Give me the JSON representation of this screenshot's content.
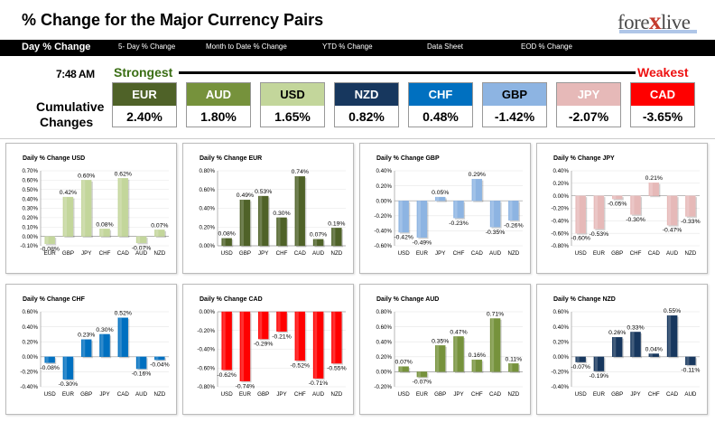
{
  "header": {
    "title": "% Change for the Major Currency Pairs"
  },
  "logo": {
    "text_pre": "fore",
    "text_x": "x",
    "text_post": "live"
  },
  "tabs": [
    {
      "label": "Day % Change",
      "active": true
    },
    {
      "label": "5- Day % Change",
      "active": false
    },
    {
      "label": "Month to Date % Change",
      "active": false
    },
    {
      "label": "YTD % Change",
      "active": false
    },
    {
      "label": "Data Sheet",
      "active": false
    },
    {
      "label": "EOD % Change",
      "active": false
    }
  ],
  "summary": {
    "time": "7:48 AM",
    "strongest_label": "Strongest",
    "weakest_label": "Weakest",
    "cumulative_label_1": "Cumulative",
    "cumulative_label_2": "Changes",
    "currencies": [
      {
        "name": "EUR",
        "value": "2.40%",
        "color": "#4f6228",
        "text_color": "#ffffff"
      },
      {
        "name": "AUD",
        "value": "1.80%",
        "color": "#76923c",
        "text_color": "#ffffff"
      },
      {
        "name": "USD",
        "value": "1.65%",
        "color": "#c3d69b",
        "text_color": "#000000"
      },
      {
        "name": "NZD",
        "value": "0.82%",
        "color": "#17375e",
        "text_color": "#ffffff"
      },
      {
        "name": "CHF",
        "value": "0.48%",
        "color": "#0070c0",
        "text_color": "#ffffff"
      },
      {
        "name": "GBP",
        "value": "-1.42%",
        "color": "#8db4e2",
        "text_color": "#000000"
      },
      {
        "name": "JPY",
        "value": "-2.07%",
        "color": "#e6b9b8",
        "text_color": "#ffffff"
      },
      {
        "name": "CAD",
        "value": "-3.65%",
        "color": "#ff0000",
        "text_color": "#ffffff"
      }
    ]
  },
  "chart_data": [
    {
      "type": "bar",
      "title": "Daily % Change USD",
      "categories": [
        "EUR",
        "GBP",
        "JPY",
        "CHF",
        "CAD",
        "AUD",
        "NZD"
      ],
      "values": [
        -0.08,
        0.42,
        0.6,
        0.08,
        0.62,
        -0.07,
        0.07
      ],
      "labels": [
        "-0.08%",
        "0.42%",
        "0.60%",
        "0.08%",
        "0.62%",
        "-0.07%",
        "0.07%"
      ],
      "ylim": [
        -0.1,
        0.7
      ],
      "yticks": [
        "-0.10%",
        "0.00%",
        "0.10%",
        "0.20%",
        "0.30%",
        "0.40%",
        "0.50%",
        "0.60%",
        "0.70%"
      ],
      "color": "#c3d69b"
    },
    {
      "type": "bar",
      "title": "Daily % Change EUR",
      "categories": [
        "USD",
        "GBP",
        "JPY",
        "CHF",
        "CAD",
        "AUD",
        "NZD"
      ],
      "values": [
        0.08,
        0.49,
        0.53,
        0.3,
        0.74,
        0.07,
        0.19
      ],
      "labels": [
        "0.08%",
        "0.49%",
        "0.53%",
        "0.30%",
        "0.74%",
        "0.07%",
        "0.19%"
      ],
      "ylim": [
        0.0,
        0.8
      ],
      "yticks": [
        "0.00%",
        "0.20%",
        "0.40%",
        "0.60%",
        "0.80%"
      ],
      "color": "#4f6228"
    },
    {
      "type": "bar",
      "title": "Daily % Change GBP",
      "categories": [
        "USD",
        "EUR",
        "JPY",
        "CHF",
        "CAD",
        "AUD",
        "NZD"
      ],
      "values": [
        -0.42,
        -0.49,
        0.05,
        -0.23,
        0.29,
        -0.35,
        -0.26
      ],
      "labels": [
        "-0.42%",
        "-0.49%",
        "0.05%",
        "-0.23%",
        "0.29%",
        "-0.35%",
        "-0.26%"
      ],
      "ylim": [
        -0.6,
        0.4
      ],
      "yticks": [
        "-0.60%",
        "-0.40%",
        "-0.20%",
        "0.00%",
        "0.20%",
        "0.40%"
      ],
      "color": "#8db4e2"
    },
    {
      "type": "bar",
      "title": "Daily % Change JPY",
      "categories": [
        "USD",
        "EUR",
        "GBP",
        "CHF",
        "CAD",
        "AUD",
        "NZD"
      ],
      "values": [
        -0.6,
        -0.53,
        -0.05,
        -0.3,
        0.21,
        -0.47,
        -0.33
      ],
      "labels": [
        "-0.60%",
        "-0.53%",
        "-0.05%",
        "-0.30%",
        "0.21%",
        "-0.47%",
        "-0.33%"
      ],
      "ylim": [
        -0.8,
        0.4
      ],
      "yticks": [
        "-0.80%",
        "-0.60%",
        "-0.40%",
        "-0.20%",
        "0.00%",
        "0.20%",
        "0.40%"
      ],
      "color": "#e6b9b8"
    },
    {
      "type": "bar",
      "title": "Daily % Change CHF",
      "categories": [
        "USD",
        "EUR",
        "GBP",
        "JPY",
        "CAD",
        "AUD",
        "NZD"
      ],
      "values": [
        -0.08,
        -0.3,
        0.23,
        0.3,
        0.52,
        -0.16,
        -0.04
      ],
      "labels": [
        "-0.08%",
        "-0.30%",
        "0.23%",
        "0.30%",
        "0.52%",
        "-0.16%",
        "-0.04%"
      ],
      "ylim": [
        -0.4,
        0.6
      ],
      "yticks": [
        "-0.40%",
        "-0.20%",
        "0.00%",
        "0.20%",
        "0.40%",
        "0.60%"
      ],
      "color": "#0070c0"
    },
    {
      "type": "bar",
      "title": "Daily % Change CAD",
      "categories": [
        "USD",
        "EUR",
        "GBP",
        "JPY",
        "CHF",
        "AUD",
        "NZD"
      ],
      "values": [
        -0.62,
        -0.74,
        -0.29,
        -0.21,
        -0.52,
        -0.71,
        -0.55
      ],
      "labels": [
        "-0.62%",
        "-0.74%",
        "-0.29%",
        "-0.21%",
        "-0.52%",
        "-0.71%",
        "-0.55%"
      ],
      "ylim": [
        -0.8,
        0.0
      ],
      "yticks": [
        "-0.80%",
        "-0.60%",
        "-0.40%",
        "-0.20%",
        "0.00%"
      ],
      "color": "#ff0000"
    },
    {
      "type": "bar",
      "title": "Daily % Change AUD",
      "categories": [
        "USD",
        "EUR",
        "GBP",
        "JPY",
        "CHF",
        "CAD",
        "NZD"
      ],
      "values": [
        0.07,
        -0.07,
        0.35,
        0.47,
        0.16,
        0.71,
        0.11
      ],
      "labels": [
        "0.07%",
        "-0.07%",
        "0.35%",
        "0.47%",
        "0.16%",
        "0.71%",
        "0.11%"
      ],
      "ylim": [
        -0.2,
        0.8
      ],
      "yticks": [
        "-0.20%",
        "0.00%",
        "0.20%",
        "0.40%",
        "0.60%",
        "0.80%"
      ],
      "color": "#76923c"
    },
    {
      "type": "bar",
      "title": "Daily % Change NZD",
      "categories": [
        "USD",
        "EUR",
        "GBP",
        "JPY",
        "CHF",
        "CAD",
        "AUD"
      ],
      "values": [
        -0.07,
        -0.19,
        0.26,
        0.33,
        0.04,
        0.55,
        -0.11
      ],
      "labels": [
        "-0.07%",
        "-0.19%",
        "0.26%",
        "0.33%",
        "0.04%",
        "0.55%",
        "-0.11%"
      ],
      "ylim": [
        -0.4,
        0.6
      ],
      "yticks": [
        "-0.40%",
        "-0.20%",
        "0.00%",
        "0.20%",
        "0.40%",
        "0.60%"
      ],
      "color": "#17375e"
    }
  ]
}
